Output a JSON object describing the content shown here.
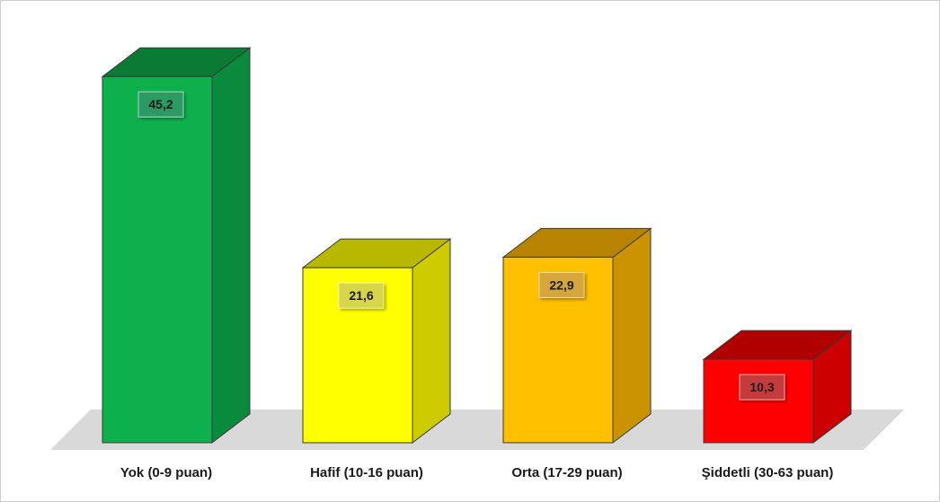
{
  "chart_data": {
    "type": "bar",
    "style": "3d-column",
    "categories": [
      "Yok (0-9 puan)",
      "Hafif (10-16 puan)",
      "Orta (17-29 puan)",
      "Şiddetli (30-63 puan)"
    ],
    "values": [
      45.2,
      21.6,
      22.9,
      10.3
    ],
    "data_labels": [
      "45,2",
      "21,6",
      "22,9",
      "10,3"
    ],
    "title": "",
    "xlabel": "",
    "ylabel": "",
    "ylim": [
      0,
      47
    ],
    "grid": false,
    "legend": "none",
    "colors": [
      {
        "front": "#0eb04e",
        "side": "#0a8a3c",
        "top": "#0a7a35",
        "label_bg": "#2e9a63"
      },
      {
        "front": "#ffff00",
        "side": "#cccc00",
        "top": "#b8b800",
        "label_bg": "#d6d64a"
      },
      {
        "front": "#ffc000",
        "side": "#cc9300",
        "top": "#b88400",
        "label_bg": "#d6a53a"
      },
      {
        "front": "#ff0000",
        "side": "#cc0000",
        "top": "#b00000",
        "label_bg": "#c43a3a"
      }
    ],
    "floor_color": "#d9d9d9"
  }
}
